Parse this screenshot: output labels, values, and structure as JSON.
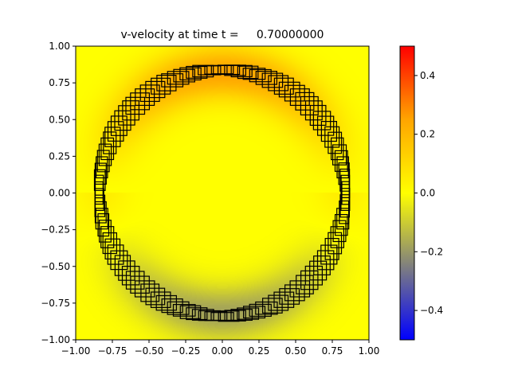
{
  "chart_data": {
    "type": "heatmap",
    "title": "v-velocity at time t =     0.70000000",
    "xlabel": "",
    "ylabel": "",
    "xlim": [
      -1.0,
      1.0
    ],
    "ylim": [
      -1.0,
      1.0
    ],
    "xticks": [
      -1.0,
      -0.75,
      -0.5,
      -0.25,
      0.0,
      0.25,
      0.5,
      0.75,
      1.0
    ],
    "xtick_labels": [
      "−1.00",
      "−0.75",
      "−0.50",
      "−0.25",
      "0.00",
      "0.25",
      "0.50",
      "0.75",
      "1.00"
    ],
    "yticks": [
      1.0,
      0.75,
      0.5,
      0.25,
      0.0,
      -0.25,
      -0.5,
      -0.75,
      -1.0
    ],
    "ytick_labels": [
      "1.00",
      "0.75",
      "0.50",
      "0.25",
      "0.00",
      "−0.25",
      "−0.50",
      "−0.75",
      "−1.00"
    ],
    "colorbar": {
      "range": [
        -0.5,
        0.5
      ],
      "ticks": [
        0.4,
        0.2,
        0.0,
        -0.2,
        -0.4
      ],
      "tick_labels": [
        "0.4",
        "0.2",
        "0.0",
        "−0.2",
        "−0.4"
      ],
      "colors": [
        "#0000ff",
        "#7f7f7f",
        "#ffff00",
        "#ffa500",
        "#ff0000"
      ]
    },
    "field": {
      "description": "v-velocity field around an expanding circular front",
      "ring_radius": 0.82,
      "band_width": 0.13,
      "peak_top": 0.25,
      "trough_bottom": -0.18
    },
    "mesh_cells": {
      "description": "adaptive refinement boxes along the circular front",
      "center_radius": 0.84,
      "count": 120
    },
    "grid": false
  }
}
